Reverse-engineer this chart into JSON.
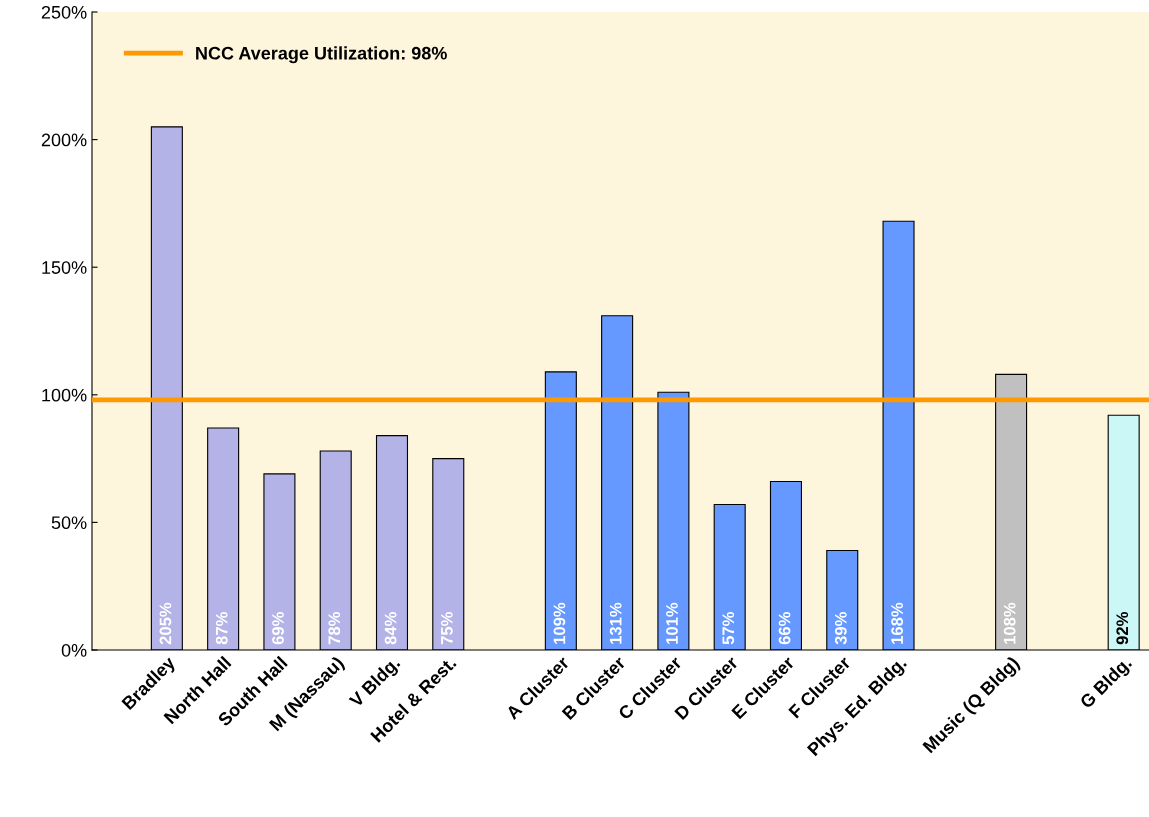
{
  "chart_data": {
    "type": "bar",
    "categories": [
      "Bradley",
      "North Hall",
      "South Hall",
      "M (Nassau)",
      "V Bldg.",
      "Hotel & Rest.",
      null,
      "A Cluster",
      "B Cluster",
      "C Cluster",
      "D Cluster",
      "E Cluster",
      "F Cluster",
      "Phys. Ed. Bldg.",
      null,
      "Music (Q Bldg)",
      null,
      "G Bldg."
    ],
    "values": [
      205,
      87,
      69,
      78,
      84,
      75,
      null,
      109,
      131,
      101,
      57,
      66,
      39,
      168,
      null,
      108,
      null,
      92
    ],
    "colors": [
      "#b3b3e8",
      "#b3b3e8",
      "#b3b3e8",
      "#b3b3e8",
      "#b3b3e8",
      "#b3b3e8",
      null,
      "#6699ff",
      "#6699ff",
      "#6699ff",
      "#6699ff",
      "#6699ff",
      "#6699ff",
      "#6699ff",
      null,
      "#c0c0c0",
      null,
      "#ccf7f7"
    ],
    "value_labels": [
      "205%",
      "87%",
      "69%",
      "78%",
      "84%",
      "75%",
      null,
      "109%",
      "131%",
      "101%",
      "57%",
      "66%",
      "39%",
      "168%",
      null,
      "108%",
      null,
      "92%"
    ],
    "ylim": [
      0,
      250
    ],
    "yticks": [
      {
        "value": 0,
        "label": "0%"
      },
      {
        "value": 50,
        "label": "50%"
      },
      {
        "value": 100,
        "label": "100%"
      },
      {
        "value": 150,
        "label": "150%"
      },
      {
        "value": 200,
        "label": "200%"
      },
      {
        "value": 250,
        "label": "250%"
      }
    ],
    "ref_lines": [
      {
        "axis": "y",
        "value": 98,
        "label": "NCC Average Utilization: 98%",
        "color": "#ff9900",
        "line_style": "solid"
      }
    ],
    "legend": "top left",
    "grid": false
  }
}
